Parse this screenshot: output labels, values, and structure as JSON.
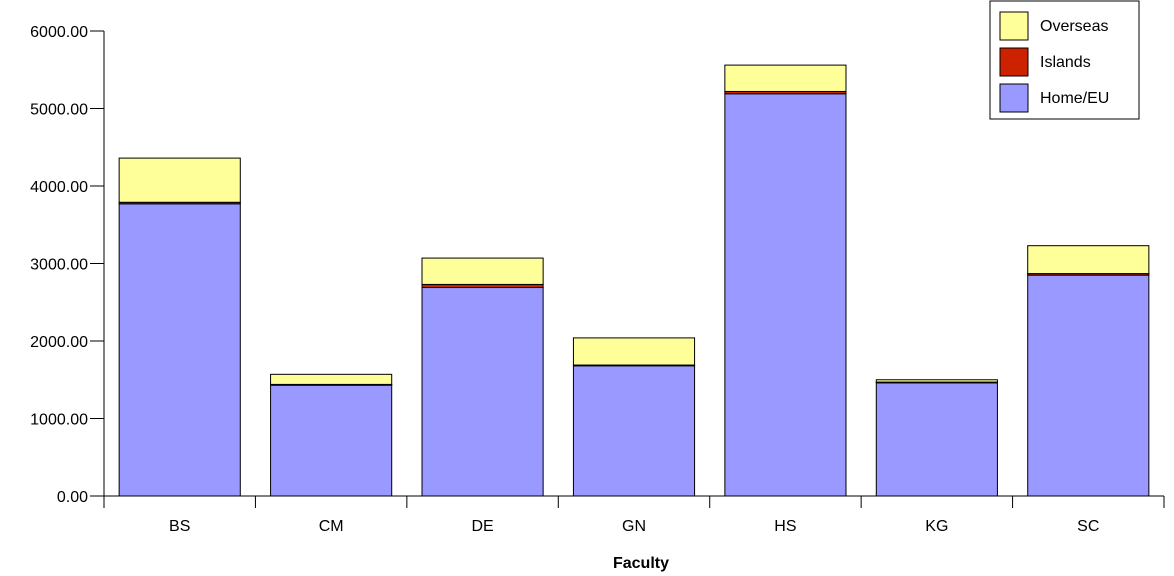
{
  "chart_data": {
    "type": "bar",
    "stacked": true,
    "title": "",
    "xlabel": "Faculty",
    "ylabel": "",
    "categories": [
      "BS",
      "CM",
      "DE",
      "GN",
      "HS",
      "KG",
      "SC"
    ],
    "ylim": [
      0,
      6000
    ],
    "yticks": [
      "0.00",
      "1000.00",
      "2000.00",
      "3000.00",
      "4000.00",
      "5000.00",
      "6000.00"
    ],
    "grid": false,
    "legend_position": "top-right",
    "series": [
      {
        "name": "Home/EU",
        "color": "#9999ff",
        "values": [
          3770,
          1430,
          2690,
          1680,
          5190,
          1460,
          2850
        ]
      },
      {
        "name": "Islands",
        "color": "#cc2200",
        "values": [
          20,
          10,
          40,
          10,
          30,
          10,
          20
        ]
      },
      {
        "name": "Overseas",
        "color": "#ffff99",
        "values": [
          570,
          130,
          340,
          350,
          340,
          30,
          360
        ]
      }
    ],
    "legend_order": [
      "Overseas",
      "Islands",
      "Home/EU"
    ]
  }
}
